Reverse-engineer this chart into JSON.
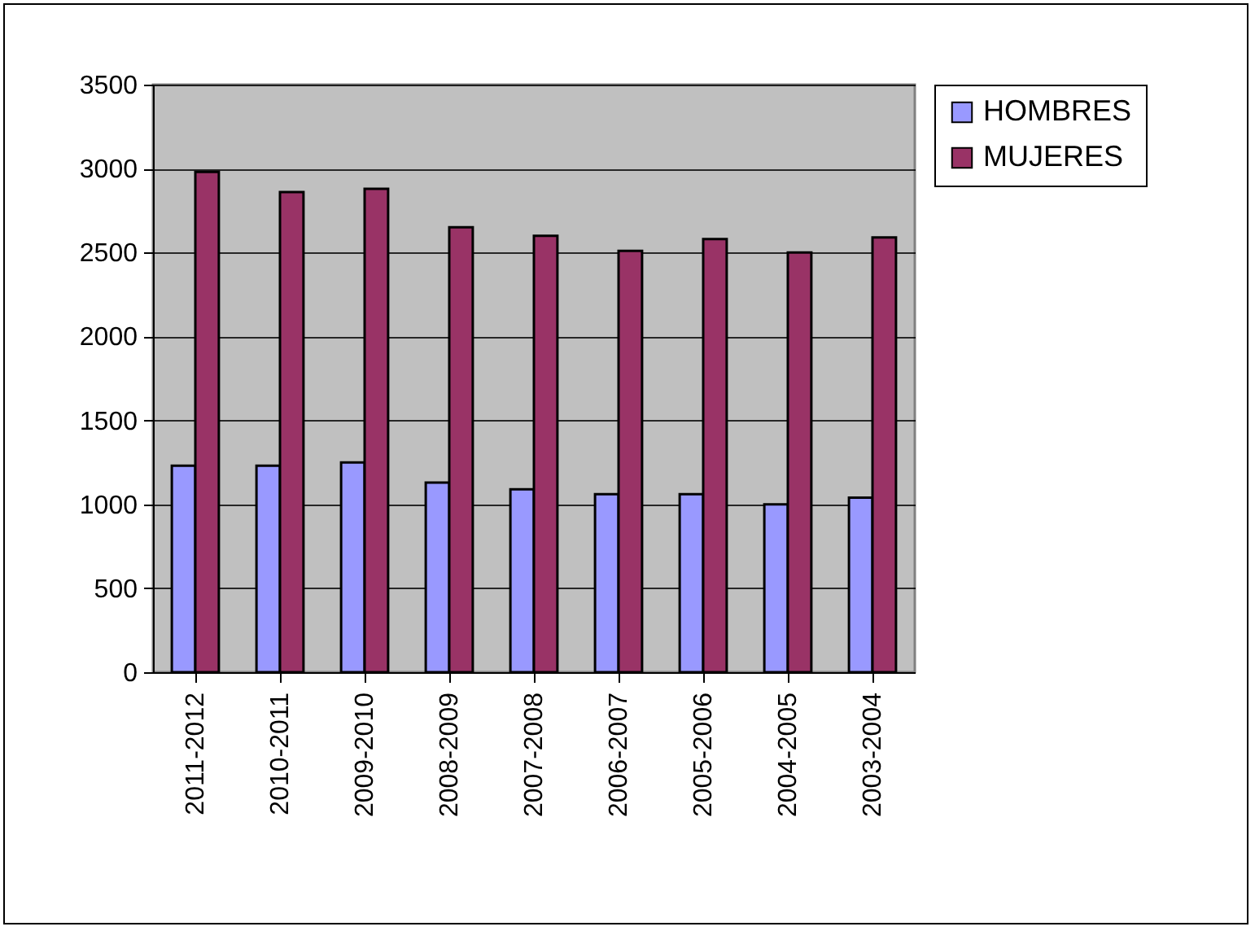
{
  "chart_data": {
    "type": "bar",
    "categories": [
      "2011-2012",
      "2010-2011",
      "2009-2010",
      "2008-2009",
      "2007-2008",
      "2006-2007",
      "2005-2006",
      "2004-2005",
      "2003-2004"
    ],
    "series": [
      {
        "name": "HOMBRES",
        "color": "#9999ff",
        "values": [
          1230,
          1230,
          1250,
          1130,
          1090,
          1060,
          1060,
          1000,
          1040
        ]
      },
      {
        "name": "MUJERES",
        "color": "#993366",
        "values": [
          2980,
          2860,
          2880,
          2650,
          2600,
          2510,
          2580,
          2500,
          2590
        ]
      }
    ],
    "ylim": [
      0,
      3500
    ],
    "yticks": [
      0,
      500,
      1000,
      1500,
      2000,
      2500,
      3000,
      3500
    ],
    "grid": "y",
    "legend": "right"
  }
}
